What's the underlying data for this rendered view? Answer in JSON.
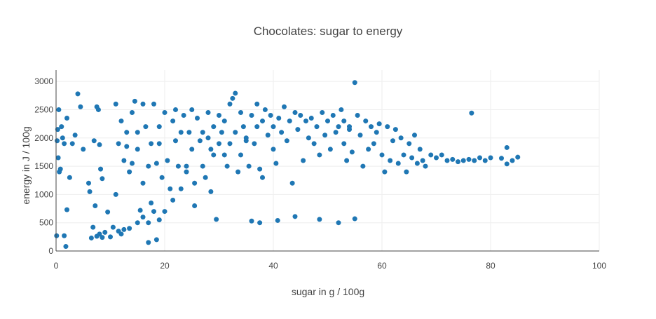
{
  "chart_data": {
    "type": "scatter",
    "title": "Chocolates: sugar to energy",
    "xlabel": "sugar in g / 100g",
    "ylabel": "energy in J / 100g",
    "xlim": [
      0,
      100
    ],
    "ylim": [
      0,
      3200
    ],
    "xticks": [
      0,
      20,
      40,
      60,
      80,
      100
    ],
    "yticks": [
      0,
      500,
      1000,
      1500,
      2000,
      2500,
      3000
    ],
    "grid": true,
    "legend": "none",
    "colors": {
      "marker": "#1f77b4",
      "grid": "#eeeeee",
      "axis": "#444444",
      "text": "#444444"
    },
    "series": [
      {
        "values_note": "",
        "points": [
          [
            0.2,
            1950
          ],
          [
            0.3,
            2150
          ],
          [
            0.4,
            1650
          ],
          [
            0.5,
            2500
          ],
          [
            0.6,
            1400
          ],
          [
            0.8,
            1450
          ],
          [
            1.0,
            2200
          ],
          [
            1.2,
            2000
          ],
          [
            1.5,
            1900
          ],
          [
            2.0,
            2350
          ],
          [
            0.1,
            270
          ],
          [
            1.5,
            270
          ],
          [
            1.8,
            80
          ],
          [
            2.0,
            730
          ],
          [
            2.5,
            1300
          ],
          [
            3.0,
            1900
          ],
          [
            3.5,
            2050
          ],
          [
            4.0,
            2780
          ],
          [
            4.5,
            2550
          ],
          [
            5.0,
            1800
          ],
          [
            6.0,
            1200
          ],
          [
            6.2,
            1050
          ],
          [
            6.5,
            230
          ],
          [
            6.8,
            420
          ],
          [
            7.0,
            1950
          ],
          [
            7.5,
            2550
          ],
          [
            7.8,
            2500
          ],
          [
            8.0,
            1880
          ],
          [
            8.2,
            1450
          ],
          [
            8.5,
            1280
          ],
          [
            7.2,
            800
          ],
          [
            7.5,
            260
          ],
          [
            8.0,
            300
          ],
          [
            8.5,
            240
          ],
          [
            9.0,
            330
          ],
          [
            9.5,
            690
          ],
          [
            10.0,
            250
          ],
          [
            10.5,
            420
          ],
          [
            11.0,
            2600
          ],
          [
            11.5,
            1900
          ],
          [
            12.0,
            2300
          ],
          [
            12.5,
            1600
          ],
          [
            11.0,
            1000
          ],
          [
            11.5,
            350
          ],
          [
            12.0,
            300
          ],
          [
            12.5,
            380
          ],
          [
            13.0,
            2100
          ],
          [
            13.0,
            1850
          ],
          [
            13.5,
            1400
          ],
          [
            13.5,
            400
          ],
          [
            14.0,
            1550
          ],
          [
            14.0,
            2450
          ],
          [
            14.5,
            2650
          ],
          [
            15.0,
            2100
          ],
          [
            15.0,
            1800
          ],
          [
            15.0,
            500
          ],
          [
            15.5,
            720
          ],
          [
            16.0,
            2600
          ],
          [
            16.0,
            1200
          ],
          [
            16.0,
            600
          ],
          [
            16.5,
            2200
          ],
          [
            17.0,
            1500
          ],
          [
            17.0,
            500
          ],
          [
            17.0,
            150
          ],
          [
            17.5,
            1900
          ],
          [
            17.5,
            850
          ],
          [
            18.0,
            2600
          ],
          [
            18.0,
            700
          ],
          [
            18.5,
            1550
          ],
          [
            18.5,
            200
          ],
          [
            19.0,
            2200
          ],
          [
            19.0,
            1900
          ],
          [
            19.0,
            550
          ],
          [
            19.5,
            1300
          ],
          [
            20.0,
            700
          ],
          [
            20.0,
            2450
          ],
          [
            20.5,
            1600
          ],
          [
            21.0,
            1100
          ],
          [
            21.5,
            2300
          ],
          [
            21.5,
            900
          ],
          [
            22.0,
            1950
          ],
          [
            22.0,
            2500
          ],
          [
            22.5,
            1500
          ],
          [
            23.0,
            2100
          ],
          [
            23.0,
            1100
          ],
          [
            23.5,
            2400
          ],
          [
            24.0,
            1500
          ],
          [
            24.0,
            1400
          ],
          [
            24.5,
            2100
          ],
          [
            25.0,
            1800
          ],
          [
            25.0,
            2500
          ],
          [
            25.5,
            1200
          ],
          [
            25.5,
            800
          ],
          [
            26.0,
            2350
          ],
          [
            26.5,
            1950
          ],
          [
            27.0,
            2100
          ],
          [
            27.0,
            1500
          ],
          [
            27.5,
            1300
          ],
          [
            28.0,
            2450
          ],
          [
            28.0,
            2000
          ],
          [
            28.5,
            1800
          ],
          [
            28.5,
            1050
          ],
          [
            29.0,
            2200
          ],
          [
            29.0,
            1700
          ],
          [
            29.5,
            560
          ],
          [
            30.0,
            2400
          ],
          [
            30.0,
            1900
          ],
          [
            30.5,
            2100
          ],
          [
            31.0,
            2300
          ],
          [
            31.0,
            1700
          ],
          [
            31.5,
            1500
          ],
          [
            32.0,
            2600
          ],
          [
            32.0,
            1900
          ],
          [
            32.5,
            2700
          ],
          [
            33.0,
            2100
          ],
          [
            33.0,
            2790
          ],
          [
            33.5,
            1400
          ],
          [
            34.0,
            2450
          ],
          [
            34.0,
            1700
          ],
          [
            34.5,
            2200
          ],
          [
            35.0,
            1950
          ],
          [
            35.0,
            2000
          ],
          [
            35.5,
            1500
          ],
          [
            36.0,
            2400
          ],
          [
            36.0,
            530
          ],
          [
            36.5,
            1900
          ],
          [
            37.0,
            2600
          ],
          [
            37.0,
            2200
          ],
          [
            37.5,
            1450
          ],
          [
            37.5,
            500
          ],
          [
            38.0,
            2300
          ],
          [
            38.0,
            1300
          ],
          [
            38.5,
            2500
          ],
          [
            39.0,
            2050
          ],
          [
            39.5,
            2400
          ],
          [
            40.0,
            1800
          ],
          [
            40.0,
            2200
          ],
          [
            40.5,
            1550
          ],
          [
            40.8,
            540
          ],
          [
            41.0,
            2350
          ],
          [
            41.5,
            2100
          ],
          [
            42.0,
            2550
          ],
          [
            42.5,
            1950
          ],
          [
            43.0,
            2300
          ],
          [
            43.5,
            1200
          ],
          [
            44.0,
            2450
          ],
          [
            44.0,
            610
          ],
          [
            44.5,
            2150
          ],
          [
            45.0,
            2400
          ],
          [
            45.5,
            1600
          ],
          [
            46.0,
            2300
          ],
          [
            46.5,
            2000
          ],
          [
            47.0,
            2350
          ],
          [
            47.5,
            1900
          ],
          [
            48.0,
            2200
          ],
          [
            48.5,
            560
          ],
          [
            48.5,
            1700
          ],
          [
            49.0,
            2450
          ],
          [
            49.5,
            2050
          ],
          [
            50.0,
            2300
          ],
          [
            50.5,
            1800
          ],
          [
            51.0,
            2400
          ],
          [
            51.5,
            2100
          ],
          [
            52.0,
            2200
          ],
          [
            52.0,
            500
          ],
          [
            52.5,
            2500
          ],
          [
            53.0,
            1900
          ],
          [
            53.0,
            2300
          ],
          [
            53.5,
            1600
          ],
          [
            54.0,
            2150
          ],
          [
            54.0,
            2200
          ],
          [
            54.5,
            1750
          ],
          [
            55.0,
            2980
          ],
          [
            55.0,
            570
          ],
          [
            55.5,
            2400
          ],
          [
            56.0,
            2050
          ],
          [
            56.5,
            1500
          ],
          [
            57.0,
            2300
          ],
          [
            57.5,
            1800
          ],
          [
            58.0,
            2200
          ],
          [
            58.5,
            1900
          ],
          [
            59.0,
            2100
          ],
          [
            59.5,
            2250
          ],
          [
            60.0,
            1700
          ],
          [
            60.5,
            1400
          ],
          [
            61.0,
            2200
          ],
          [
            61.5,
            1600
          ],
          [
            62.0,
            1950
          ],
          [
            62.5,
            2150
          ],
          [
            63.0,
            1550
          ],
          [
            63.5,
            2000
          ],
          [
            64.0,
            1700
          ],
          [
            64.5,
            1400
          ],
          [
            65.0,
            1900
          ],
          [
            65.5,
            1650
          ],
          [
            66.0,
            2050
          ],
          [
            66.5,
            1550
          ],
          [
            67.0,
            1800
          ],
          [
            67.5,
            1600
          ],
          [
            68.0,
            1500
          ],
          [
            69.0,
            1700
          ],
          [
            70.0,
            1650
          ],
          [
            71.0,
            1700
          ],
          [
            72.0,
            1600
          ],
          [
            73.0,
            1620
          ],
          [
            74.0,
            1580
          ],
          [
            75.0,
            1600
          ],
          [
            76.0,
            1620
          ],
          [
            76.5,
            2440
          ],
          [
            77.0,
            1600
          ],
          [
            78.0,
            1650
          ],
          [
            79.0,
            1600
          ],
          [
            80.0,
            1650
          ],
          [
            82.0,
            1640
          ],
          [
            83.0,
            1830
          ],
          [
            83.0,
            1540
          ],
          [
            84.0,
            1600
          ],
          [
            85.0,
            1660
          ]
        ]
      }
    ]
  }
}
